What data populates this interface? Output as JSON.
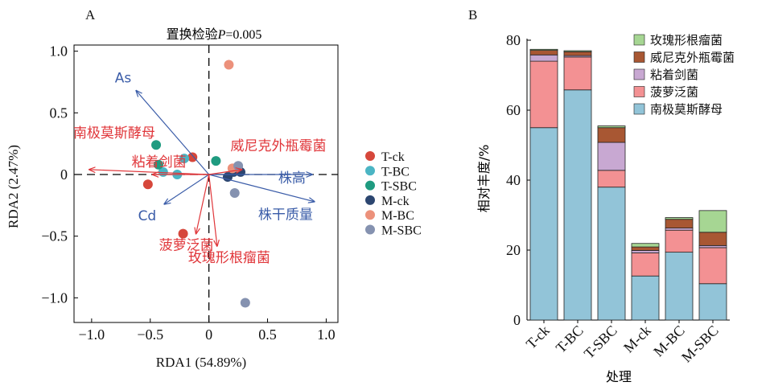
{
  "chart_data": [
    {
      "panel": "A",
      "type": "scatter",
      "title": "置换检验P=0.005",
      "title_prefix": "置换检验",
      "title_var": "P",
      "title_suffix": "=0.005",
      "xlabel": "RDA1 (54.89%)",
      "ylabel": "RDA2 (2.47%)",
      "xlim": [
        -1.15,
        1.1
      ],
      "ylim": [
        -1.2,
        1.05
      ],
      "xticks": [
        -1.0,
        -0.5,
        0,
        0.5,
        1.0
      ],
      "xtick_labels": [
        "−1.0",
        "−0.5",
        "0",
        "0.5",
        "1.0"
      ],
      "yticks": [
        -1.0,
        -0.5,
        0,
        0.5,
        1.0
      ],
      "ytick_labels": [
        "−1.0",
        "−0.5",
        "0",
        "0.5",
        "1.0"
      ],
      "series": [
        {
          "name": "T-ck",
          "color": "#d6473b",
          "points": [
            [
              -0.14,
              0.14
            ],
            [
              -0.52,
              -0.08
            ],
            [
              -0.22,
              -0.48
            ]
          ]
        },
        {
          "name": "T-BC",
          "color": "#4bb5c4",
          "points": [
            [
              -0.21,
              0.13
            ],
            [
              -0.27,
              0.0
            ],
            [
              -0.39,
              0.02
            ]
          ]
        },
        {
          "name": "T-SBC",
          "color": "#1f9b80",
          "points": [
            [
              -0.45,
              0.24
            ],
            [
              -0.43,
              0.08
            ],
            [
              0.06,
              0.11
            ]
          ]
        },
        {
          "name": "M-ck",
          "color": "#2c4670",
          "points": [
            [
              0.16,
              -0.02
            ],
            [
              0.21,
              0.02
            ],
            [
              0.27,
              0.02
            ]
          ]
        },
        {
          "name": "M-BC",
          "color": "#ec917b",
          "points": [
            [
              0.17,
              0.89
            ],
            [
              0.2,
              0.05
            ],
            [
              0.24,
              0.06
            ]
          ]
        },
        {
          "name": "M-SBC",
          "color": "#8592b0",
          "points": [
            [
              0.22,
              -0.15
            ],
            [
              0.25,
              0.07
            ],
            [
              0.31,
              -1.04
            ]
          ]
        }
      ],
      "vectors": [
        {
          "label": "As",
          "x": -0.62,
          "y": 0.68,
          "color": "#3a5ca8",
          "group": "env"
        },
        {
          "label": "Cd",
          "x": -0.38,
          "y": -0.24,
          "color": "#3a5ca8",
          "group": "env"
        },
        {
          "label": "株高",
          "x": 0.88,
          "y": 0.0,
          "color": "#3a5ca8",
          "group": "env"
        },
        {
          "label": "株干质量",
          "x": 0.9,
          "y": -0.22,
          "color": "#3a5ca8",
          "group": "env"
        },
        {
          "label": "南极莫斯酵母",
          "x": -1.02,
          "y": 0.04,
          "color": "#e0363a",
          "group": "species"
        },
        {
          "label": "粘着剑菌",
          "x": -0.48,
          "y": 0.0,
          "color": "#e0363a",
          "group": "species"
        },
        {
          "label": "威尼克外瓶霉菌",
          "x": 0.28,
          "y": 0.04,
          "color": "#e0363a",
          "group": "species"
        },
        {
          "label": "菠萝泛菌",
          "x": -0.11,
          "y": -0.48,
          "color": "#e0363a",
          "group": "species"
        },
        {
          "label": "玫瑰形根瘤菌",
          "x": 0.07,
          "y": -0.58,
          "color": "#e0363a",
          "group": "species"
        }
      ],
      "legend_position": "right"
    },
    {
      "panel": "B",
      "type": "bar",
      "stacked": true,
      "xlabel": "处理",
      "ylabel": "相对丰度/%",
      "ylim": [
        0,
        80
      ],
      "yticks": [
        0,
        20,
        40,
        60,
        80
      ],
      "categories": [
        "T-ck",
        "T-BC",
        "T-SBC",
        "M-ck",
        "M-BC",
        "M-SBC"
      ],
      "series": [
        {
          "name": "南极莫斯酵母",
          "color": "#92c4d8",
          "values": [
            55,
            65.8,
            38,
            12.6,
            19.4,
            10.4
          ]
        },
        {
          "name": "菠萝泛菌",
          "color": "#f39193",
          "values": [
            19,
            9.4,
            4.8,
            6.6,
            6.3,
            10.3
          ]
        },
        {
          "name": "粘着剑菌",
          "color": "#c8a8d2",
          "values": [
            1.8,
            0.4,
            8,
            0.7,
            0.6,
            0.6
          ]
        },
        {
          "name": "威尼克外瓶霉菌",
          "color": "#a85733",
          "values": [
            1.3,
            1.1,
            4.2,
            1,
            2.5,
            3.8
          ]
        },
        {
          "name": "玫瑰形根瘤菌",
          "color": "#a6d693",
          "values": [
            0.3,
            0.3,
            0.5,
            1,
            0.5,
            6.2
          ]
        }
      ],
      "legend_position": "top-right"
    }
  ]
}
